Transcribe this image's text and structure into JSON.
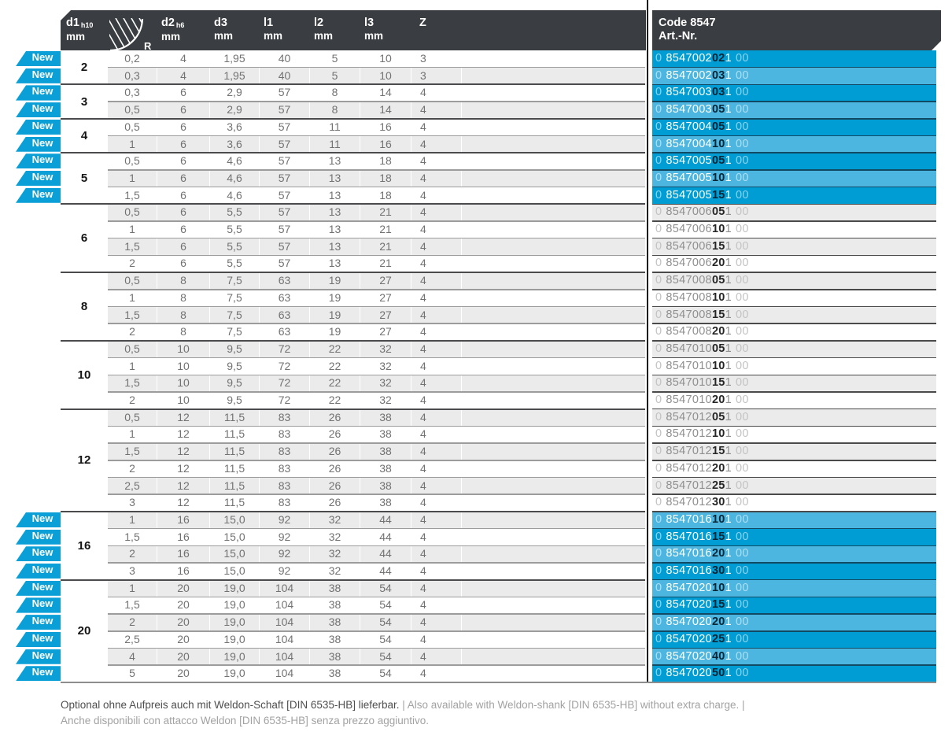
{
  "header": {
    "columns": [
      {
        "label": "d1",
        "sub": "h10",
        "unit": "mm"
      },
      {
        "label": "R",
        "icon": "corner-radius-icon"
      },
      {
        "label": "d2",
        "sub": "h6",
        "unit": "mm"
      },
      {
        "label": "d3",
        "sub": "",
        "unit": "mm"
      },
      {
        "label": "l1",
        "sub": "",
        "unit": "mm"
      },
      {
        "label": "l2",
        "sub": "",
        "unit": "mm"
      },
      {
        "label": "l3",
        "sub": "",
        "unit": "mm"
      },
      {
        "label": "Z",
        "sub": "",
        "unit": ""
      }
    ],
    "code_title": "Code 8547",
    "code_subtitle": "Art.-Nr."
  },
  "badge_label": "New",
  "groups": [
    {
      "d1": "2",
      "new": true,
      "d2": "4",
      "d3": "1,95",
      "l1": "40",
      "l2": "5",
      "l3": "10",
      "z": "3",
      "rows": [
        {
          "r": "0,2",
          "art": {
            "pre": "0",
            "main": "8547002",
            "bold": "02",
            "post": "1",
            "suffix": "00"
          }
        },
        {
          "r": "0,3",
          "art": {
            "pre": "0",
            "main": "8547002",
            "bold": "03",
            "post": "1",
            "suffix": "00"
          }
        }
      ]
    },
    {
      "d1": "3",
      "new": true,
      "d2": "6",
      "d3": "2,9",
      "l1": "57",
      "l2": "8",
      "l3": "14",
      "z": "4",
      "rows": [
        {
          "r": "0,3",
          "art": {
            "pre": "0",
            "main": "8547003",
            "bold": "03",
            "post": "1",
            "suffix": "00"
          }
        },
        {
          "r": "0,5",
          "art": {
            "pre": "0",
            "main": "8547003",
            "bold": "05",
            "post": "1",
            "suffix": "00"
          }
        }
      ]
    },
    {
      "d1": "4",
      "new": true,
      "d2": "6",
      "d3": "3,6",
      "l1": "57",
      "l2": "11",
      "l3": "16",
      "z": "4",
      "rows": [
        {
          "r": "0,5",
          "art": {
            "pre": "0",
            "main": "8547004",
            "bold": "05",
            "post": "1",
            "suffix": "00"
          }
        },
        {
          "r": "1",
          "art": {
            "pre": "0",
            "main": "8547004",
            "bold": "10",
            "post": "1",
            "suffix": "00"
          }
        }
      ]
    },
    {
      "d1": "5",
      "new": true,
      "d2": "6",
      "d3": "4,6",
      "l1": "57",
      "l2": "13",
      "l3": "18",
      "z": "4",
      "rows": [
        {
          "r": "0,5",
          "art": {
            "pre": "0",
            "main": "8547005",
            "bold": "05",
            "post": "1",
            "suffix": "00"
          }
        },
        {
          "r": "1",
          "art": {
            "pre": "0",
            "main": "8547005",
            "bold": "10",
            "post": "1",
            "suffix": "00"
          }
        },
        {
          "r": "1,5",
          "art": {
            "pre": "0",
            "main": "8547005",
            "bold": "15",
            "post": "1",
            "suffix": "00"
          }
        }
      ]
    },
    {
      "d1": "6",
      "new": false,
      "d2": "6",
      "d3": "5,5",
      "l1": "57",
      "l2": "13",
      "l3": "21",
      "z": "4",
      "rows": [
        {
          "r": "0,5",
          "art": {
            "pre": "0",
            "main": "8547006",
            "bold": "05",
            "post": "1",
            "suffix": "00"
          }
        },
        {
          "r": "1",
          "art": {
            "pre": "0",
            "main": "8547006",
            "bold": "10",
            "post": "1",
            "suffix": "00"
          }
        },
        {
          "r": "1,5",
          "art": {
            "pre": "0",
            "main": "8547006",
            "bold": "15",
            "post": "1",
            "suffix": "00"
          }
        },
        {
          "r": "2",
          "art": {
            "pre": "0",
            "main": "8547006",
            "bold": "20",
            "post": "1",
            "suffix": "00"
          }
        }
      ]
    },
    {
      "d1": "8",
      "new": false,
      "d2": "8",
      "d3": "7,5",
      "l1": "63",
      "l2": "19",
      "l3": "27",
      "z": "4",
      "rows": [
        {
          "r": "0,5",
          "art": {
            "pre": "0",
            "main": "8547008",
            "bold": "05",
            "post": "1",
            "suffix": "00"
          }
        },
        {
          "r": "1",
          "art": {
            "pre": "0",
            "main": "8547008",
            "bold": "10",
            "post": "1",
            "suffix": "00"
          }
        },
        {
          "r": "1,5",
          "art": {
            "pre": "0",
            "main": "8547008",
            "bold": "15",
            "post": "1",
            "suffix": "00"
          }
        },
        {
          "r": "2",
          "art": {
            "pre": "0",
            "main": "8547008",
            "bold": "20",
            "post": "1",
            "suffix": "00"
          }
        }
      ]
    },
    {
      "d1": "10",
      "new": false,
      "d2": "10",
      "d3": "9,5",
      "l1": "72",
      "l2": "22",
      "l3": "32",
      "z": "4",
      "rows": [
        {
          "r": "0,5",
          "art": {
            "pre": "0",
            "main": "8547010",
            "bold": "05",
            "post": "1",
            "suffix": "00"
          }
        },
        {
          "r": "1",
          "art": {
            "pre": "0",
            "main": "8547010",
            "bold": "10",
            "post": "1",
            "suffix": "00"
          }
        },
        {
          "r": "1,5",
          "art": {
            "pre": "0",
            "main": "8547010",
            "bold": "15",
            "post": "1",
            "suffix": "00"
          }
        },
        {
          "r": "2",
          "art": {
            "pre": "0",
            "main": "8547010",
            "bold": "20",
            "post": "1",
            "suffix": "00"
          }
        }
      ]
    },
    {
      "d1": "12",
      "new": false,
      "d2": "12",
      "d3": "11,5",
      "l1": "83",
      "l2": "26",
      "l3": "38",
      "z": "4",
      "rows": [
        {
          "r": "0,5",
          "art": {
            "pre": "0",
            "main": "8547012",
            "bold": "05",
            "post": "1",
            "suffix": "00"
          }
        },
        {
          "r": "1",
          "art": {
            "pre": "0",
            "main": "8547012",
            "bold": "10",
            "post": "1",
            "suffix": "00"
          }
        },
        {
          "r": "1,5",
          "art": {
            "pre": "0",
            "main": "8547012",
            "bold": "15",
            "post": "1",
            "suffix": "00"
          }
        },
        {
          "r": "2",
          "art": {
            "pre": "0",
            "main": "8547012",
            "bold": "20",
            "post": "1",
            "suffix": "00"
          }
        },
        {
          "r": "2,5",
          "art": {
            "pre": "0",
            "main": "8547012",
            "bold": "25",
            "post": "1",
            "suffix": "00"
          }
        },
        {
          "r": "3",
          "art": {
            "pre": "0",
            "main": "8547012",
            "bold": "30",
            "post": "1",
            "suffix": "00"
          }
        }
      ]
    },
    {
      "d1": "16",
      "new": true,
      "d2": "16",
      "d3": "15,0",
      "l1": "92",
      "l2": "32",
      "l3": "44",
      "z": "4",
      "rows": [
        {
          "r": "1",
          "art": {
            "pre": "0",
            "main": "8547016",
            "bold": "10",
            "post": "1",
            "suffix": "00"
          }
        },
        {
          "r": "1,5",
          "art": {
            "pre": "0",
            "main": "8547016",
            "bold": "15",
            "post": "1",
            "suffix": "00"
          }
        },
        {
          "r": "2",
          "art": {
            "pre": "0",
            "main": "8547016",
            "bold": "20",
            "post": "1",
            "suffix": "00"
          }
        },
        {
          "r": "3",
          "art": {
            "pre": "0",
            "main": "8547016",
            "bold": "30",
            "post": "1",
            "suffix": "00"
          }
        }
      ]
    },
    {
      "d1": "20",
      "new": true,
      "d2": "20",
      "d3": "19,0",
      "l1": "104",
      "l2": "38",
      "l3": "54",
      "z": "4",
      "rows": [
        {
          "r": "1",
          "art": {
            "pre": "0",
            "main": "8547020",
            "bold": "10",
            "post": "1",
            "suffix": "00"
          }
        },
        {
          "r": "1,5",
          "art": {
            "pre": "0",
            "main": "8547020",
            "bold": "15",
            "post": "1",
            "suffix": "00"
          }
        },
        {
          "r": "2",
          "art": {
            "pre": "0",
            "main": "8547020",
            "bold": "20",
            "post": "1",
            "suffix": "00"
          }
        },
        {
          "r": "2,5",
          "art": {
            "pre": "0",
            "main": "8547020",
            "bold": "25",
            "post": "1",
            "suffix": "00"
          }
        },
        {
          "r": "4",
          "art": {
            "pre": "0",
            "main": "8547020",
            "bold": "40",
            "post": "1",
            "suffix": "00"
          }
        },
        {
          "r": "5",
          "art": {
            "pre": "0",
            "main": "8547020",
            "bold": "50",
            "post": "1",
            "suffix": "00"
          }
        }
      ]
    }
  ],
  "footer": {
    "line1_de": "Optional ohne Aufpreis auch mit Weldon-Schaft [DIN 6535-HB] lieferbar.",
    "line1_rest": " | Also available with Weldon-shank [DIN 6535-HB] without extra charge. |",
    "line2": "Anche disponibili con attacco Weldon [DIN 6535-HB] senza prezzo aggiuntivo."
  },
  "colors": {
    "accent_blue": "#0a9fd6",
    "accent_blue_light": "#4db6e0",
    "header_dark": "#3a3d41",
    "row_gray": "#ebebeb"
  }
}
